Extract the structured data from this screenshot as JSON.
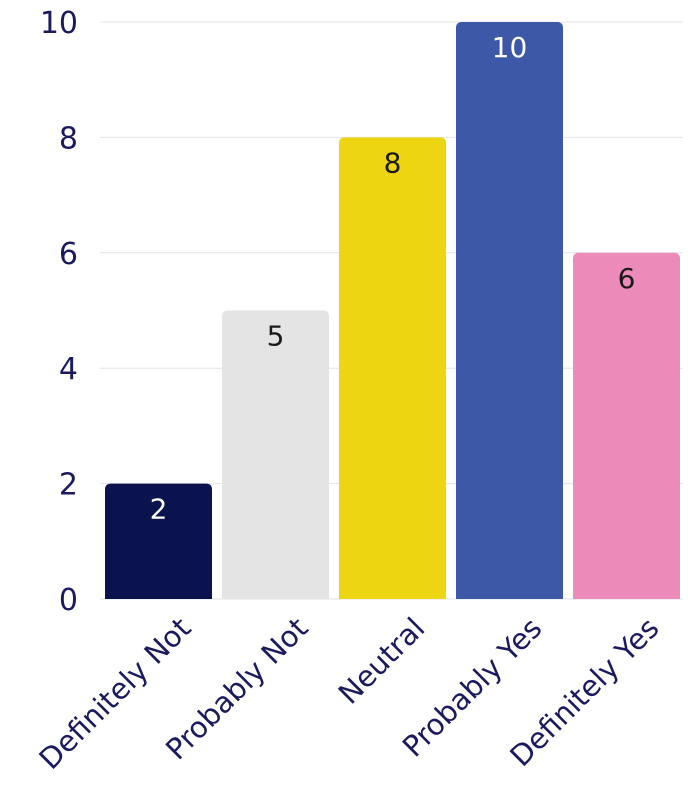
{
  "chart_data": {
    "type": "bar",
    "title": "",
    "xlabel": "",
    "ylabel": "",
    "categories": [
      "Definitely Not",
      "Probably Not",
      "Neutral",
      "Probably Yes",
      "Definitely Yes"
    ],
    "values": [
      2,
      5,
      8,
      10,
      6
    ],
    "data_labels": [
      "2",
      "5",
      "8",
      "10",
      "6"
    ],
    "colors": [
      "#0b134f",
      "#e3e4e3",
      "#edd511",
      "#3d58a6",
      "#ec8bb9"
    ],
    "label_colors": [
      "#ffffff",
      "#1a1a1a",
      "#1a1a1a",
      "#ffffff",
      "#1a1a1a"
    ],
    "ylim": [
      0,
      10
    ],
    "yticks": [
      0,
      2,
      4,
      6,
      8,
      10
    ],
    "ytick_labels": [
      "0",
      "2",
      "4",
      "6",
      "8",
      "10"
    ],
    "grid": true,
    "legend": "none",
    "tick_color": "#1b1a5c",
    "grid_color": "#e3e3e8"
  }
}
